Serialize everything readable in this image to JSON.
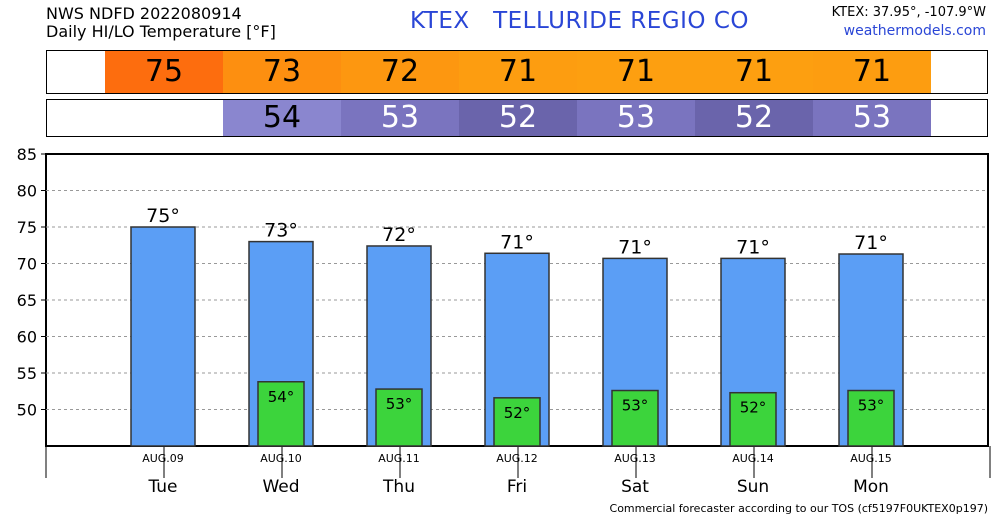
{
  "header": {
    "line1": "NWS NDFD 2022080914",
    "line2": "Daily HI/LO Temperature [°F]",
    "title": "KTEX   TELLURIDE REGIO CO",
    "coords": "KTEX: 37.95°, -107.9°W",
    "site": "weathermodels.com"
  },
  "colors": {
    "hi_bar": "#5b9ef5",
    "lo_bar": "#3cd43c",
    "hi_strip": [
      "#fd6d0e",
      "#fd8f10",
      "#fd9710",
      "#fd9d10",
      "#fd9f10",
      "#fd9f10",
      "#fd9d10"
    ],
    "lo_strip": [
      null,
      "#8a86cf",
      "#7a74bf",
      "#6a64ab",
      "#7a74bf",
      "#6a64ab",
      "#7a74bf"
    ]
  },
  "chart_data": {
    "type": "bar",
    "days": [
      "Tue",
      "Wed",
      "Thu",
      "Fri",
      "Sat",
      "Sun",
      "Mon"
    ],
    "dates": [
      "AUG.09",
      "AUG.10",
      "AUG.11",
      "AUG.12",
      "AUG.13",
      "AUG.14",
      "AUG.15"
    ],
    "series": [
      {
        "values": [
          75,
          73,
          72,
          71,
          71,
          71,
          71
        ],
        "plotted": [
          75,
          73,
          72.4,
          71.4,
          70.7,
          70.7,
          71.3
        ]
      },
      {
        "values": [
          null,
          54,
          53,
          52,
          53,
          52,
          53
        ],
        "plotted": [
          null,
          53.8,
          52.8,
          51.6,
          52.6,
          52.3,
          52.6
        ]
      }
    ],
    "yticks": [
      50,
      55,
      60,
      65,
      70,
      75,
      80,
      85
    ],
    "ylim": [
      45,
      85
    ],
    "grid": true
  },
  "footer": "Commercial forecaster according to our TOS (cf5197F0UKTEX0p197)"
}
